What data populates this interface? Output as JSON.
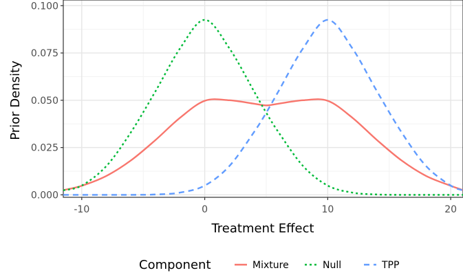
{
  "chart_data": {
    "type": "line",
    "title": "",
    "xlabel": "Treatment Effect",
    "ylabel": "Prior Density",
    "xlim": [
      -11.5,
      21
    ],
    "ylim": [
      -0.0013,
      0.103
    ],
    "x_ticks": [
      -10,
      0,
      10,
      20
    ],
    "x_tick_labels": [
      "-10",
      "0",
      "10",
      "20"
    ],
    "y_ticks": [
      0,
      0.025,
      0.05,
      0.075,
      0.1
    ],
    "y_tick_labels": [
      "0.000",
      "0.025",
      "0.050",
      "0.075",
      "0.100"
    ],
    "grid": true,
    "legend": {
      "title": "Component",
      "position": "bottom"
    },
    "x": [
      -11.5,
      -10,
      -8,
      -6,
      -4,
      -2,
      0,
      2,
      4,
      5,
      6,
      8,
      10,
      12,
      14,
      16,
      18,
      20,
      21
    ],
    "series": [
      {
        "name": "Mixture",
        "color": "#F8766D",
        "dash": "solid",
        "values": [
          0.0025,
          0.0048,
          0.01,
          0.0182,
          0.029,
          0.0408,
          0.0497,
          0.05,
          0.0482,
          0.0473,
          0.0482,
          0.05,
          0.0497,
          0.0408,
          0.029,
          0.0182,
          0.01,
          0.0048,
          0.0025
        ]
      },
      {
        "name": "Null",
        "color": "#00BA38",
        "dash": "dotted",
        "values": [
          0.0024,
          0.0049,
          0.0152,
          0.0331,
          0.0548,
          0.0775,
          0.0925,
          0.0775,
          0.0548,
          0.0434,
          0.0331,
          0.0152,
          0.0049,
          0.0012,
          0.0002,
          0.0,
          0.0,
          0.0,
          0.0
        ]
      },
      {
        "name": "TPP",
        "color": "#619CFF",
        "dash": "dashed",
        "values": [
          0.0,
          0.0,
          0.0,
          0.0,
          0.0002,
          0.0012,
          0.0049,
          0.0152,
          0.0331,
          0.0434,
          0.0548,
          0.0775,
          0.0925,
          0.0775,
          0.0548,
          0.0331,
          0.0152,
          0.0049,
          0.0024
        ]
      }
    ]
  }
}
